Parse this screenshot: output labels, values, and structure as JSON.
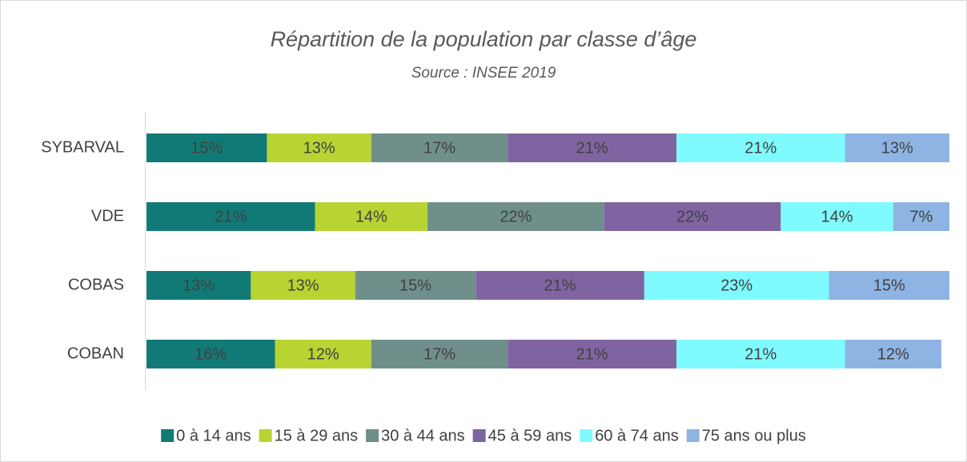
{
  "chart_data": {
    "type": "stacked-bar-horizontal",
    "title": "Répartition de la population par classe d’âge",
    "subtitle": "Source : INSEE 2019",
    "categories": [
      "SYBARVAL",
      "VDE",
      "COBAS",
      "COBAN"
    ],
    "xlim": [
      0,
      100
    ],
    "series": [
      {
        "name": "0 à 14 ans",
        "color": "#127a76",
        "values": [
          15,
          21,
          13,
          16
        ],
        "value_labels": [
          "15%",
          "21%",
          "13%",
          "16%"
        ]
      },
      {
        "name": "15 à 29 ans",
        "color": "#b8d432",
        "values": [
          13,
          14,
          13,
          12
        ],
        "value_labels": [
          "13%",
          "14%",
          "13%",
          "12%"
        ]
      },
      {
        "name": "30 à 44 ans",
        "color": "#6f8f8b",
        "values": [
          17,
          22,
          15,
          17
        ],
        "value_labels": [
          "17%",
          "22%",
          "15%",
          "17%"
        ]
      },
      {
        "name": "45 à 59 ans",
        "color": "#8064a2",
        "values": [
          21,
          22,
          21,
          21
        ],
        "value_labels": [
          "21%",
          "22%",
          "21%",
          "21%"
        ]
      },
      {
        "name": "60 à 74 ans",
        "color": "#7ffbff",
        "values": [
          21,
          14,
          23,
          21
        ],
        "value_labels": [
          "21%",
          "14%",
          "23%",
          "21%"
        ]
      },
      {
        "name": "75 ans ou plus",
        "color": "#8eb4e3",
        "values": [
          13,
          7,
          15,
          12
        ],
        "value_labels": [
          "13%",
          "7%",
          "15%",
          "12%"
        ]
      }
    ],
    "legend": "bottom"
  }
}
